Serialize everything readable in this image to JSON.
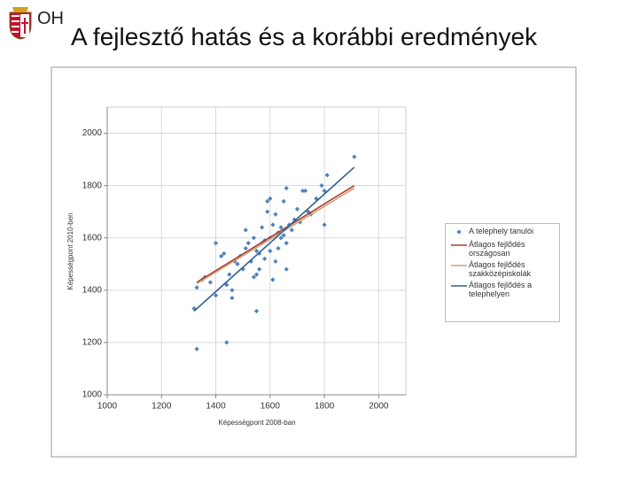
{
  "slide": {
    "logo": "OH",
    "title": "A fejlesztő hatás és a korábbi eredmények"
  },
  "chart_data": {
    "type": "scatter",
    "x_label": "Képességpont 2008-ban",
    "y_label": "Képességpont 2010-ben",
    "xlim": [
      1000,
      2100
    ],
    "ylim": [
      1000,
      2100
    ],
    "xticks": [
      1000,
      1200,
      1400,
      1600,
      1800,
      2000
    ],
    "yticks": [
      1000,
      1200,
      1400,
      1600,
      1800,
      2000
    ],
    "grid": true,
    "legend": "right",
    "series": [
      {
        "name": "A telephely tanulói",
        "color": "#4f81bd",
        "mode": "markers",
        "x": [
          1330,
          1440,
          1320,
          1330,
          1350,
          1360,
          1380,
          1400,
          1400,
          1420,
          1430,
          1440,
          1450,
          1460,
          1460,
          1470,
          1480,
          1490,
          1500,
          1510,
          1510,
          1520,
          1530,
          1540,
          1540,
          1550,
          1550,
          1550,
          1560,
          1560,
          1570,
          1570,
          1580,
          1580,
          1590,
          1590,
          1600,
          1600,
          1600,
          1610,
          1610,
          1620,
          1620,
          1630,
          1630,
          1640,
          1640,
          1650,
          1650,
          1660,
          1660,
          1660,
          1670,
          1680,
          1690,
          1700,
          1710,
          1720,
          1730,
          1740,
          1750,
          1770,
          1790,
          1800,
          1810,
          1800,
          1910
        ],
        "values": [
          1175,
          1200,
          1330,
          1410,
          1440,
          1450,
          1430,
          1380,
          1580,
          1530,
          1540,
          1420,
          1460,
          1370,
          1400,
          1510,
          1500,
          1530,
          1480,
          1560,
          1630,
          1580,
          1510,
          1600,
          1450,
          1550,
          1320,
          1460,
          1540,
          1480,
          1640,
          1580,
          1590,
          1520,
          1700,
          1740,
          1750,
          1600,
          1550,
          1650,
          1440,
          1690,
          1510,
          1560,
          1620,
          1600,
          1640,
          1740,
          1610,
          1790,
          1580,
          1480,
          1650,
          1630,
          1670,
          1710,
          1660,
          1780,
          1780,
          1700,
          1690,
          1750,
          1800,
          1650,
          1840,
          1780,
          1910
        ]
      },
      {
        "name": "Átlagos fejlődés országosan",
        "color": "#b03a2e",
        "mode": "lines",
        "x": [
          1330,
          1910
        ],
        "values": [
          1430,
          1800
        ]
      },
      {
        "name": "Átlagos fejlődés szakközépiskolák",
        "color": "#c9a27a",
        "mode": "lines",
        "x": [
          1330,
          1910
        ],
        "values": [
          1425,
          1790
        ]
      },
      {
        "name": "Átlagos fejlődés a telephelyen",
        "color": "#2e5f8f",
        "mode": "lines",
        "x": [
          1320,
          1910
        ],
        "values": [
          1320,
          1870
        ]
      }
    ]
  }
}
